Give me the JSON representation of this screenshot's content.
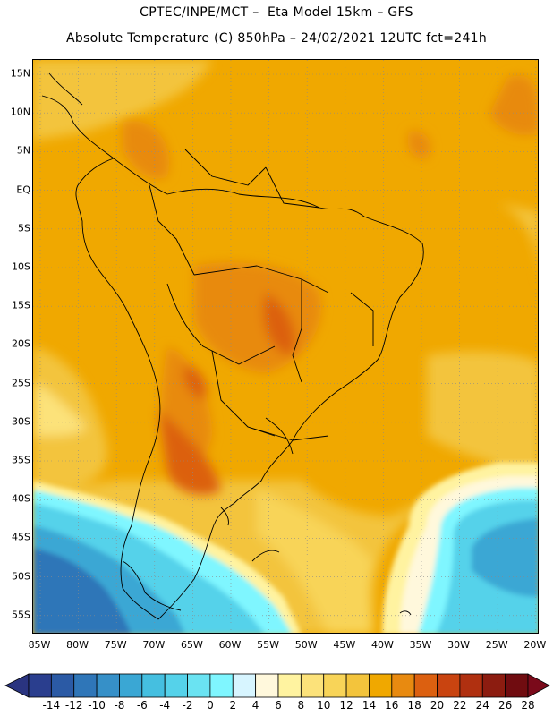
{
  "title": {
    "line1": "CPTEC/INPE/MCT –  Eta Model 15km – GFS",
    "line2": "Absolute Temperature (C) 850hPa – 24/02/2021 12UTC fct=241h"
  },
  "map": {
    "lat_labels": [
      "15N",
      "10N",
      "5N",
      "EQ",
      "5S",
      "10S",
      "15S",
      "20S",
      "25S",
      "30S",
      "35S",
      "40S",
      "45S",
      "50S",
      "55S"
    ],
    "lon_labels": [
      "85W",
      "80W",
      "75W",
      "70W",
      "65W",
      "60W",
      "55W",
      "50W",
      "45W",
      "40W",
      "35W",
      "30W",
      "25W",
      "20W"
    ],
    "background_color": "#f0a800",
    "cold_ocean_colors": [
      "#5ad8ea",
      "#2aa0d0",
      "#1f78b4"
    ],
    "grid": "dotted"
  },
  "colorbar": {
    "labels": [
      "-14",
      "-12",
      "-10",
      "-8",
      "-6",
      "-4",
      "-2",
      "0",
      "2",
      "4",
      "6",
      "8",
      "10",
      "12",
      "14",
      "16",
      "18",
      "20",
      "22",
      "24",
      "26",
      "28"
    ],
    "colors": [
      "#2a3e8e",
      "#2b5aa5",
      "#2f76b8",
      "#3690c8",
      "#3aa7d4",
      "#45bfe0",
      "#55d2ea",
      "#6ae3f2",
      "#7ff6ff",
      "#d7f5ff",
      "#fff8dc",
      "#fff3a0",
      "#fce27a",
      "#f8d458",
      "#f3c43c",
      "#f0a800",
      "#e88a10",
      "#dc6010",
      "#c94410",
      "#b03010",
      "#8c1c10",
      "#700c10"
    ],
    "end_low": "#2a3480",
    "end_high": "#7a0a1a"
  }
}
